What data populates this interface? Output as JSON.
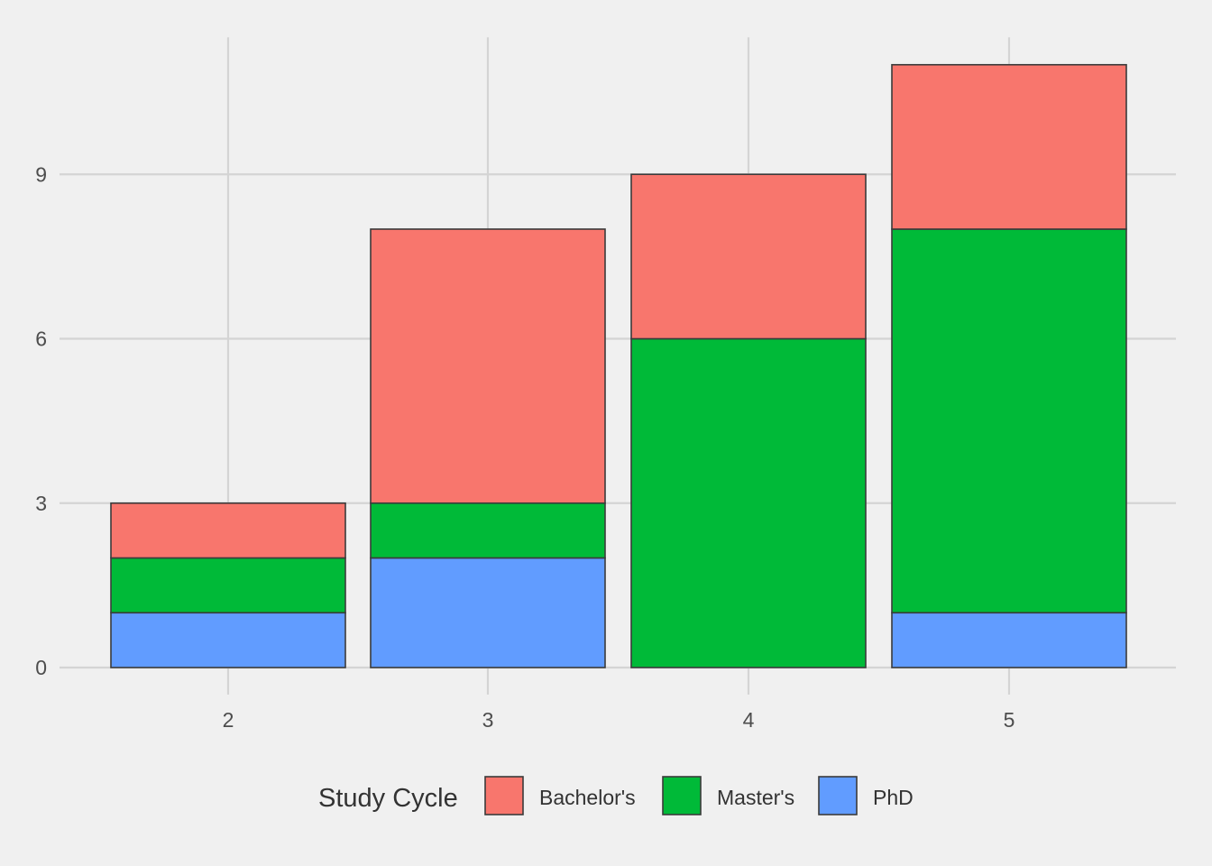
{
  "chart_data": {
    "type": "bar",
    "stacked": true,
    "categories": [
      "2",
      "3",
      "4",
      "5"
    ],
    "series": [
      {
        "name": "PhD",
        "color": "#619CFF",
        "values": [
          1,
          2,
          0,
          1
        ]
      },
      {
        "name": "Master's",
        "color": "#00BA38",
        "values": [
          1,
          1,
          6,
          7
        ]
      },
      {
        "name": "Bachelor's",
        "color": "#F8766D",
        "values": [
          1,
          5,
          3,
          3
        ]
      }
    ],
    "y_ticks": [
      0,
      3,
      6,
      9
    ],
    "ylim": [
      0,
      11.5
    ],
    "title": "",
    "xlabel": "",
    "ylabel": "",
    "grid": true,
    "legend": {
      "title": "Study Cycle",
      "position": "bottom",
      "order": [
        "Bachelor's",
        "Master's",
        "PhD"
      ]
    },
    "bar_border_color": "#3b3b3b",
    "background_color": "#f0f0f0",
    "grid_color": "#d4d4d4"
  }
}
